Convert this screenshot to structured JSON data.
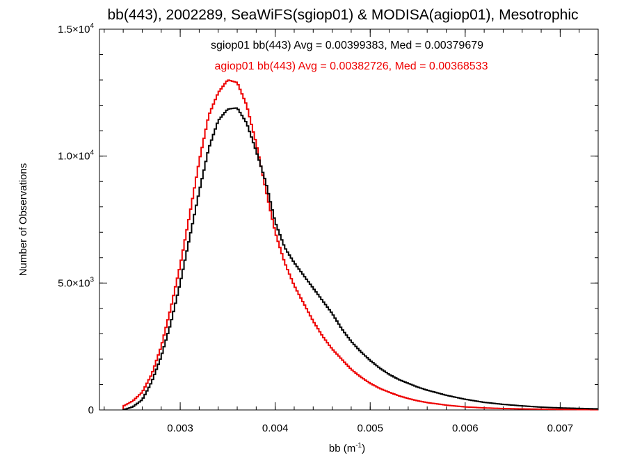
{
  "chart_data": {
    "type": "line",
    "title": "bb(443), 2002289, SeaWiFS(sgiop01) & MODISA(agiop01), Mesotrophic",
    "xlabel": {
      "base": "bb (m",
      "sup": "-1",
      "tail": ")"
    },
    "ylabel": "Number of Observations",
    "xlim": [
      0.00215,
      0.0074
    ],
    "ylim": [
      0,
      15000
    ],
    "grid": false,
    "x_ticks": [
      {
        "value": 0.003,
        "label": "0.003"
      },
      {
        "value": 0.004,
        "label": "0.004"
      },
      {
        "value": 0.005,
        "label": "0.005"
      },
      {
        "value": 0.006,
        "label": "0.006"
      },
      {
        "value": 0.007,
        "label": "0.007"
      }
    ],
    "y_ticks": [
      {
        "value": 0,
        "mant": "0",
        "exp": ""
      },
      {
        "value": 5000,
        "mant": "5.0×10",
        "exp": "3"
      },
      {
        "value": 10000,
        "mant": "1.0×10",
        "exp": "4"
      },
      {
        "value": 15000,
        "mant": "1.5×10",
        "exp": "4"
      }
    ],
    "annotations": [
      {
        "text": "sgiop01 bb(443) Avg = 0.00399383, Med = 0.00379679",
        "color": "#000000"
      },
      {
        "text": "agiop01 bb(443) Avg = 0.00382726, Med = 0.00368533",
        "color": "#ee0000"
      }
    ],
    "series": [
      {
        "color": "#000000",
        "x": [
          0.0024,
          0.0025,
          0.0026,
          0.0027,
          0.0028,
          0.0029,
          0.003,
          0.0031,
          0.0032,
          0.0033,
          0.0034,
          0.0035,
          0.0036,
          0.0037,
          0.0038,
          0.0039,
          0.004,
          0.0041,
          0.0042,
          0.0043,
          0.0044,
          0.0045,
          0.0046,
          0.0047,
          0.0048,
          0.0049,
          0.005,
          0.0051,
          0.0052,
          0.0053,
          0.0054,
          0.0055,
          0.0056,
          0.0058,
          0.006,
          0.0062,
          0.0064,
          0.0066,
          0.0068,
          0.007,
          0.0072,
          0.0074
        ],
        "y": [
          0,
          120,
          400,
          1100,
          2100,
          3400,
          5000,
          6800,
          8600,
          10300,
          11400,
          11850,
          11900,
          11300,
          10200,
          9000,
          7400,
          6400,
          5800,
          5300,
          4800,
          4300,
          3800,
          3200,
          2700,
          2300,
          1950,
          1650,
          1400,
          1200,
          1050,
          900,
          780,
          580,
          420,
          300,
          220,
          160,
          110,
          80,
          60,
          40
        ]
      },
      {
        "color": "#ee0000",
        "x": [
          0.0024,
          0.0025,
          0.0026,
          0.0027,
          0.0028,
          0.0029,
          0.003,
          0.0031,
          0.0032,
          0.0033,
          0.0034,
          0.0035,
          0.0036,
          0.0037,
          0.0038,
          0.0039,
          0.004,
          0.0041,
          0.0042,
          0.0043,
          0.0044,
          0.0045,
          0.0046,
          0.0047,
          0.0048,
          0.0049,
          0.005,
          0.0051,
          0.0052,
          0.0053,
          0.0054,
          0.0055,
          0.0056,
          0.0058,
          0.006,
          0.0062,
          0.0064,
          0.0066,
          0.0068,
          0.007,
          0.0072,
          0.0074
        ],
        "y": [
          150,
          350,
          700,
          1400,
          2500,
          4000,
          5700,
          7700,
          9800,
          11600,
          12500,
          13000,
          12900,
          12000,
          10500,
          8700,
          7000,
          5800,
          4900,
          4200,
          3500,
          2900,
          2400,
          2000,
          1600,
          1300,
          1050,
          850,
          700,
          560,
          450,
          360,
          290,
          190,
          120,
          80,
          55,
          40,
          30,
          20,
          15,
          10
        ]
      }
    ]
  }
}
